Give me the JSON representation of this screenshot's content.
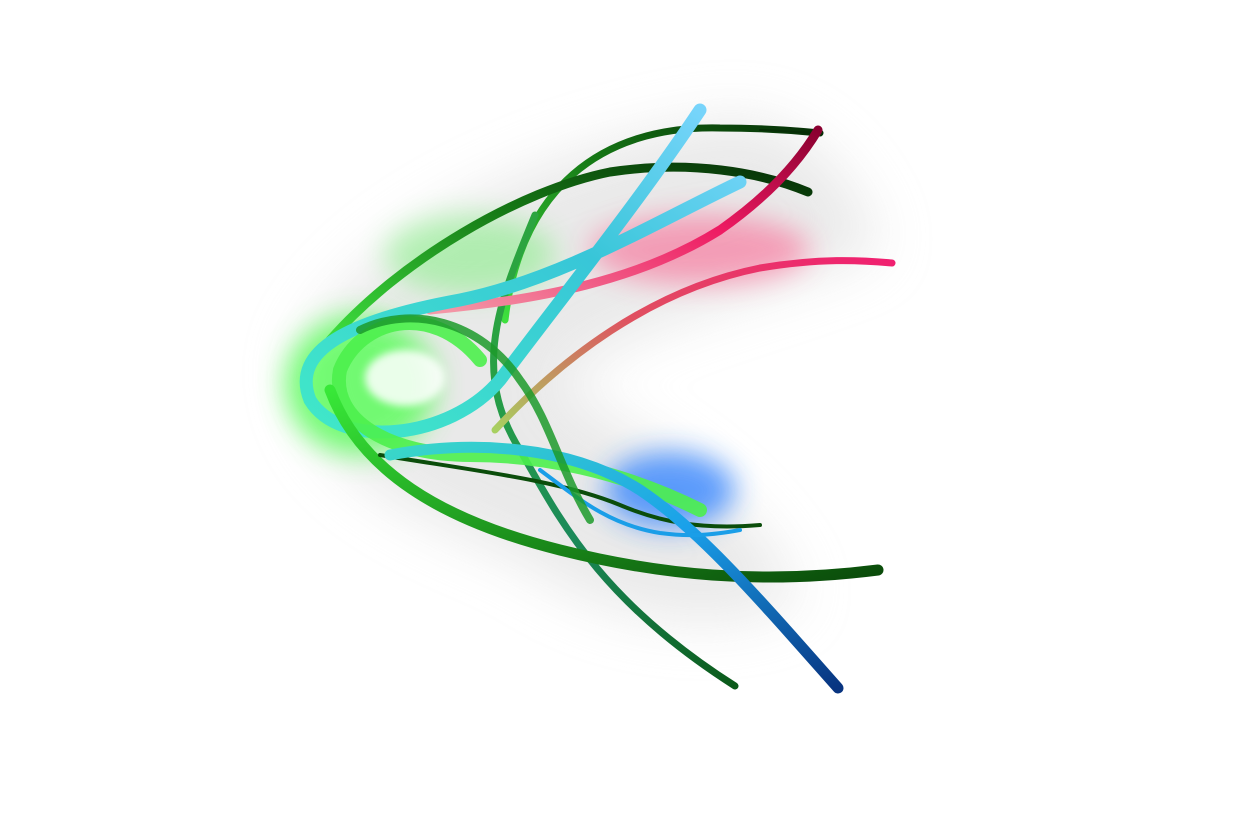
{
  "canvas": {
    "background": "#ffffff"
  },
  "artwork": {
    "name": "abstract-ribbon-swirl",
    "palette": {
      "dark_green": "#0b4d0b",
      "green": "#1e9e1e",
      "bright_green": "#4cf04c",
      "cyan": "#38d6d0",
      "sky_blue": "#1a9ee8",
      "deep_blue": "#0a3a8a",
      "magenta": "#e8105a",
      "rose": "#f06080",
      "glow_green": "#4cff4c",
      "glow_blue": "#2a7fff",
      "glow_pink": "#ff3f78",
      "shadow_gray": "#d8d8d8"
    },
    "ribbons": [
      {
        "name": "upper-dark-green-ribbon",
        "color_key": "dark_green"
      },
      {
        "name": "upper-second-green-ribbon",
        "color_key": "dark_green"
      },
      {
        "name": "cyan-loop-ribbon",
        "color_key": "cyan"
      },
      {
        "name": "magenta-ribbon",
        "color_key": "magenta"
      },
      {
        "name": "rose-ribbon",
        "color_key": "rose"
      },
      {
        "name": "bright-green-loop-ribbon",
        "color_key": "bright_green"
      },
      {
        "name": "lower-green-ribbon",
        "color_key": "green"
      },
      {
        "name": "lower-dark-green-ribbon",
        "color_key": "dark_green"
      },
      {
        "name": "blue-ribbon",
        "color_key": "sky_blue"
      },
      {
        "name": "deep-blue-tail-ribbon",
        "color_key": "deep_blue"
      },
      {
        "name": "lower-thin-blue-ribbon",
        "color_key": "sky_blue"
      }
    ]
  }
}
